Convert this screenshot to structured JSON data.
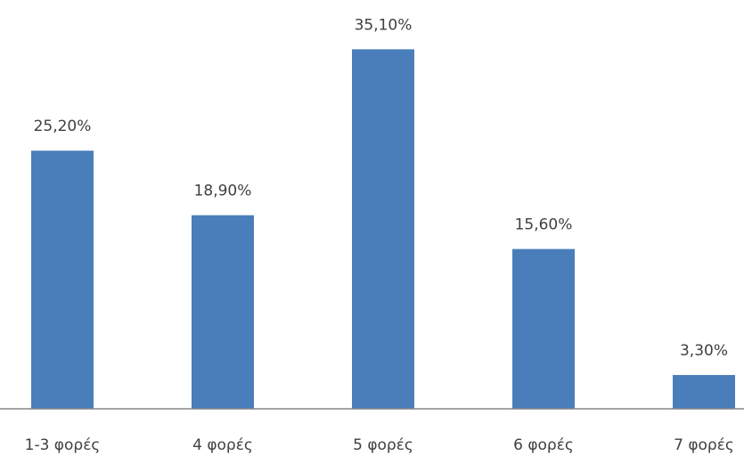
{
  "chart_data": {
    "type": "bar",
    "categories": [
      "1-3 φορές",
      "4 φορές",
      "5 φορές",
      "6 φορές",
      "7 φορές"
    ],
    "values": [
      25.2,
      18.9,
      35.1,
      15.6,
      3.3
    ],
    "data_labels": [
      "25,20%",
      "18,90%",
      "35,10%",
      "15,60%",
      "3,30%"
    ],
    "ylim": [
      0,
      36
    ],
    "grid": false,
    "legend": "none",
    "bar_color": "#4a7ebb"
  }
}
